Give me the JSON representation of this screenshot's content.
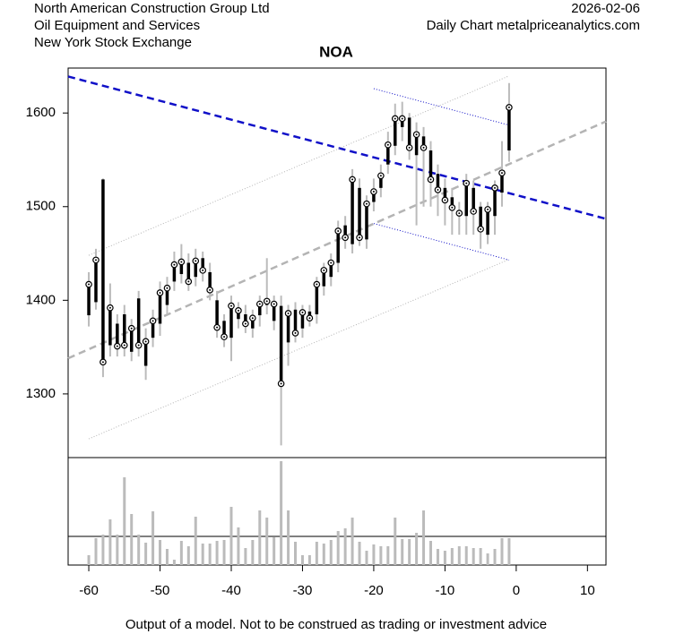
{
  "header": {
    "company": "North American Construction Group Ltd",
    "sector": "Oil Equipment and Services",
    "exchange": "New York Stock Exchange",
    "date": "2026-02-06",
    "source": "Daily Chart metalpriceanalytics.com"
  },
  "footer": "Output of a model. Not to be construed as trading or investment advice",
  "chart_data": {
    "type": "ohlc",
    "title": "NOA",
    "x": [
      -60,
      -59,
      -58,
      -57,
      -56,
      -55,
      -54,
      -53,
      -52,
      -51,
      -50,
      -49,
      -48,
      -47,
      -46,
      -45,
      -44,
      -43,
      -42,
      -41,
      -40,
      -39,
      -38,
      -37,
      -36,
      -35,
      -34,
      -33,
      -32,
      -31,
      -30,
      -29,
      -28,
      -27,
      -26,
      -25,
      -24,
      -23,
      -22,
      -21,
      -20,
      -19,
      -18,
      -17,
      -16,
      -15,
      -14,
      -13,
      -12,
      -11,
      -10,
      -9,
      -8,
      -7,
      -6,
      -5,
      -4,
      -3,
      -2,
      -1
    ],
    "open": [
      1384,
      1398,
      1529,
      1352,
      1375,
      1385,
      1345,
      1402,
      1330,
      1360,
      1375,
      1395,
      1420,
      1428,
      1440,
      1425,
      1445,
      1430,
      1400,
      1378,
      1360,
      1380,
      1385,
      1370,
      1384,
      1395,
      1378,
      1394,
      1355,
      1390,
      1370,
      1388,
      1385,
      1415,
      1425,
      1440,
      1480,
      1460,
      1520,
      1465,
      1505,
      1520,
      1545,
      1565,
      1585,
      1595,
      1555,
      1575,
      1560,
      1535,
      1520,
      1510,
      1495,
      1490,
      1520,
      1500,
      1470,
      1490,
      1515,
      1560
    ],
    "high": [
      1430,
      1455,
      1530,
      1418,
      1385,
      1395,
      1380,
      1410,
      1370,
      1390,
      1420,
      1425,
      1452,
      1460,
      1450,
      1455,
      1452,
      1440,
      1410,
      1385,
      1405,
      1398,
      1395,
      1390,
      1405,
      1445,
      1405,
      1405,
      1395,
      1398,
      1395,
      1395,
      1425,
      1440,
      1450,
      1485,
      1490,
      1540,
      1530,
      1512,
      1530,
      1545,
      1580,
      1610,
      1612,
      1600,
      1590,
      1585,
      1570,
      1545,
      1530,
      1520,
      1505,
      1535,
      1528,
      1505,
      1505,
      1528,
      1570,
      1632
    ],
    "low": [
      1372,
      1390,
      1318,
      1340,
      1340,
      1340,
      1335,
      1340,
      1315,
      1350,
      1362,
      1385,
      1410,
      1418,
      1410,
      1415,
      1420,
      1400,
      1360,
      1350,
      1335,
      1370,
      1365,
      1360,
      1372,
      1385,
      1368,
      1245,
      1330,
      1355,
      1360,
      1372,
      1375,
      1405,
      1415,
      1430,
      1455,
      1450,
      1458,
      1455,
      1495,
      1510,
      1535,
      1555,
      1570,
      1550,
      1480,
      1500,
      1500,
      1490,
      1480,
      1470,
      1470,
      1470,
      1470,
      1455,
      1460,
      1470,
      1500,
      1548
    ],
    "close": [
      1417,
      1443,
      1334,
      1392,
      1351,
      1352,
      1370,
      1352,
      1356,
      1378,
      1408,
      1413,
      1438,
      1441,
      1420,
      1442,
      1432,
      1411,
      1371,
      1361,
      1394,
      1389,
      1375,
      1381,
      1396,
      1399,
      1396,
      1311,
      1386,
      1365,
      1387,
      1381,
      1417,
      1432,
      1440,
      1474,
      1467,
      1529,
      1467,
      1503,
      1516,
      1533,
      1566,
      1594,
      1594,
      1563,
      1577,
      1563,
      1529,
      1518,
      1507,
      1499,
      1493,
      1525,
      1495,
      1476,
      1497,
      1520,
      1536,
      1606
    ],
    "volume": [
      11,
      30,
      34,
      51,
      34,
      98,
      57,
      34,
      25,
      60,
      28,
      18,
      6,
      27,
      21,
      54,
      24,
      24,
      27,
      28,
      65,
      42,
      19,
      28,
      61,
      53,
      31,
      116,
      61,
      26,
      11,
      11,
      26,
      24,
      28,
      38,
      41,
      53,
      26,
      16,
      23,
      21,
      21,
      53,
      29,
      29,
      36,
      61,
      27,
      18,
      16,
      19,
      21,
      21,
      19,
      19,
      13,
      18,
      30,
      30
    ],
    "volume_lim": [
      0,
      120
    ],
    "volume_ref": 32,
    "lines": [
      {
        "x": [
          -62.9,
          12.6
        ],
        "y": [
          1639,
          1487
        ],
        "color": "#1010c8",
        "style": "dashed"
      },
      {
        "x": [
          -62.9,
          12.6
        ],
        "y": [
          1338,
          1591
        ],
        "color": "#b4b4b4",
        "style": "dashed"
      },
      {
        "x": [
          -60,
          -1.2
        ],
        "y": [
          1448,
          1639
        ],
        "color": "#b4b4b4",
        "style": "dotted"
      },
      {
        "x": [
          -60,
          -1.2
        ],
        "y": [
          1252,
          1443
        ],
        "color": "#b4b4b4",
        "style": "dotted"
      },
      {
        "x": [
          -20,
          -1
        ],
        "y": [
          1626,
          1587
        ],
        "color": "#1010c8",
        "style": "dotted"
      },
      {
        "x": [
          -20,
          -1
        ],
        "y": [
          1482,
          1443
        ],
        "color": "#1010c8",
        "style": "dotted"
      }
    ],
    "xlim": [
      -62.9,
      12.6
    ],
    "ylim": [
      1232,
      1648
    ],
    "xticks": [
      -60,
      -50,
      -40,
      -30,
      -20,
      -10,
      0,
      10
    ],
    "yticks": [
      1300,
      1400,
      1500,
      1600
    ]
  }
}
